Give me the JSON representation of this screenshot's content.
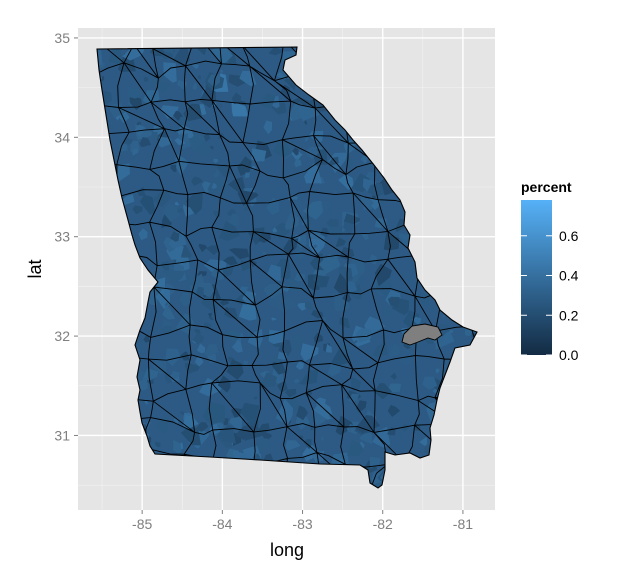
{
  "chart_data": {
    "type": "choropleth-map",
    "region": "Georgia",
    "xlabel": "long",
    "ylabel": "lat",
    "xlim": [
      -85.8,
      -80.6
    ],
    "ylim": [
      30.25,
      35.1
    ],
    "x_ticks": [
      -85,
      -84,
      -83,
      -82,
      -81
    ],
    "y_ticks": [
      31,
      32,
      33,
      34,
      35
    ],
    "x_tick_labels": [
      "-85",
      "-84",
      "-83",
      "-82",
      "-81"
    ],
    "y_tick_labels": [
      "31",
      "32",
      "33",
      "34",
      "35"
    ],
    "grid": true,
    "legend": {
      "title": "percent",
      "position": "right",
      "range": [
        0.0,
        0.78
      ],
      "breaks": [
        0.0,
        0.2,
        0.4,
        0.6
      ],
      "break_labels": [
        "0.0",
        "0.2",
        "0.4",
        "0.6"
      ],
      "low_color": "#132b43",
      "high_color": "#56b1f7"
    },
    "na_color": "#7f7f7f",
    "panel_background": "#e5e5e5",
    "grid_color": "#ffffff",
    "border_color": "#000000",
    "base_fill": "#2c5a84"
  }
}
